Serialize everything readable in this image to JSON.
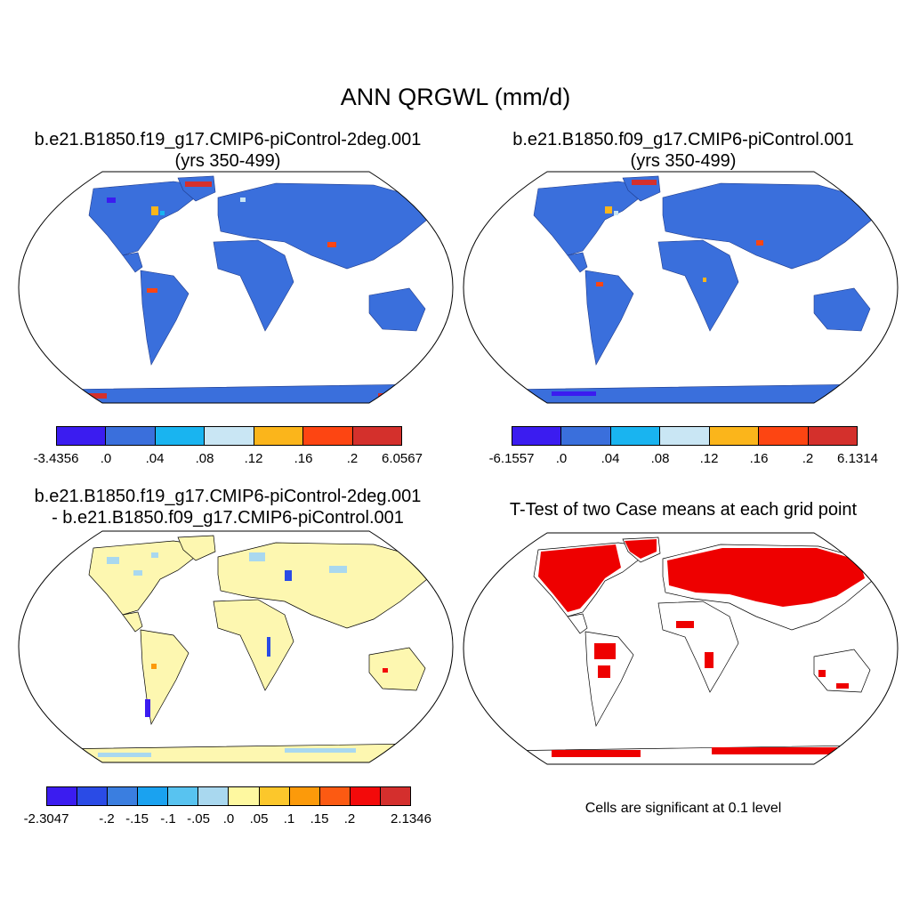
{
  "figure": {
    "title": "ANN QRGWL (mm/d)"
  },
  "panels": [
    {
      "id": "case1",
      "title_line1": "b.e21.B1850.f19_g17.CMIP6-piControl-2deg.001",
      "title_line2": "(yrs 350-499)",
      "projection": "Robinson",
      "colorbar": {
        "colors": [
          "#3b1cf0",
          "#3a6fdc",
          "#19b4f0",
          "#c9e6f4",
          "#fbb51b",
          "#fd4512",
          "#d4302c"
        ],
        "labels": [
          "-3.4356",
          ".0",
          ".04",
          ".08",
          ".12",
          ".16",
          ".2",
          "6.0567"
        ]
      }
    },
    {
      "id": "case2",
      "title_line1": "b.e21.B1850.f09_g17.CMIP6-piControl.001",
      "title_line2": "(yrs 350-499)",
      "projection": "Robinson",
      "colorbar": {
        "colors": [
          "#3b1cf0",
          "#3a6fdc",
          "#19b4f0",
          "#c9e6f4",
          "#fbb51b",
          "#fd4512",
          "#d4302c"
        ],
        "labels": [
          "-6.1557",
          ".0",
          ".04",
          ".08",
          ".12",
          ".16",
          ".2",
          "6.1314"
        ]
      }
    },
    {
      "id": "difference",
      "title_line1": "b.e21.B1850.f19_g17.CMIP6-piControl-2deg.001",
      "title_line2": "- b.e21.B1850.f09_g17.CMIP6-piControl.001",
      "projection": "Robinson",
      "colorbar": {
        "colors": [
          "#3b1cf0",
          "#2a4be6",
          "#3a7ee0",
          "#1aa2f0",
          "#58c3f0",
          "#a9d8ef",
          "#fef8a0",
          "#fcc72b",
          "#fc9a0a",
          "#fc5a12",
          "#f30a0a",
          "#d42f2d"
        ],
        "labels": [
          "-2.3047",
          "",
          "-.2",
          "-.15",
          "-.1",
          "-.05",
          ".0",
          ".05",
          ".1",
          ".15",
          ".2",
          "",
          "2.1346"
        ]
      }
    },
    {
      "id": "ttest",
      "title_line1": "T-Test of two Case means at each grid point",
      "projection": "Robinson",
      "note": "Cells are significant at 0.1 level"
    }
  ],
  "colors": {
    "land_case": "#3a6fdc",
    "land_diff": "#fdf7b0",
    "significant": "#ee0000"
  }
}
